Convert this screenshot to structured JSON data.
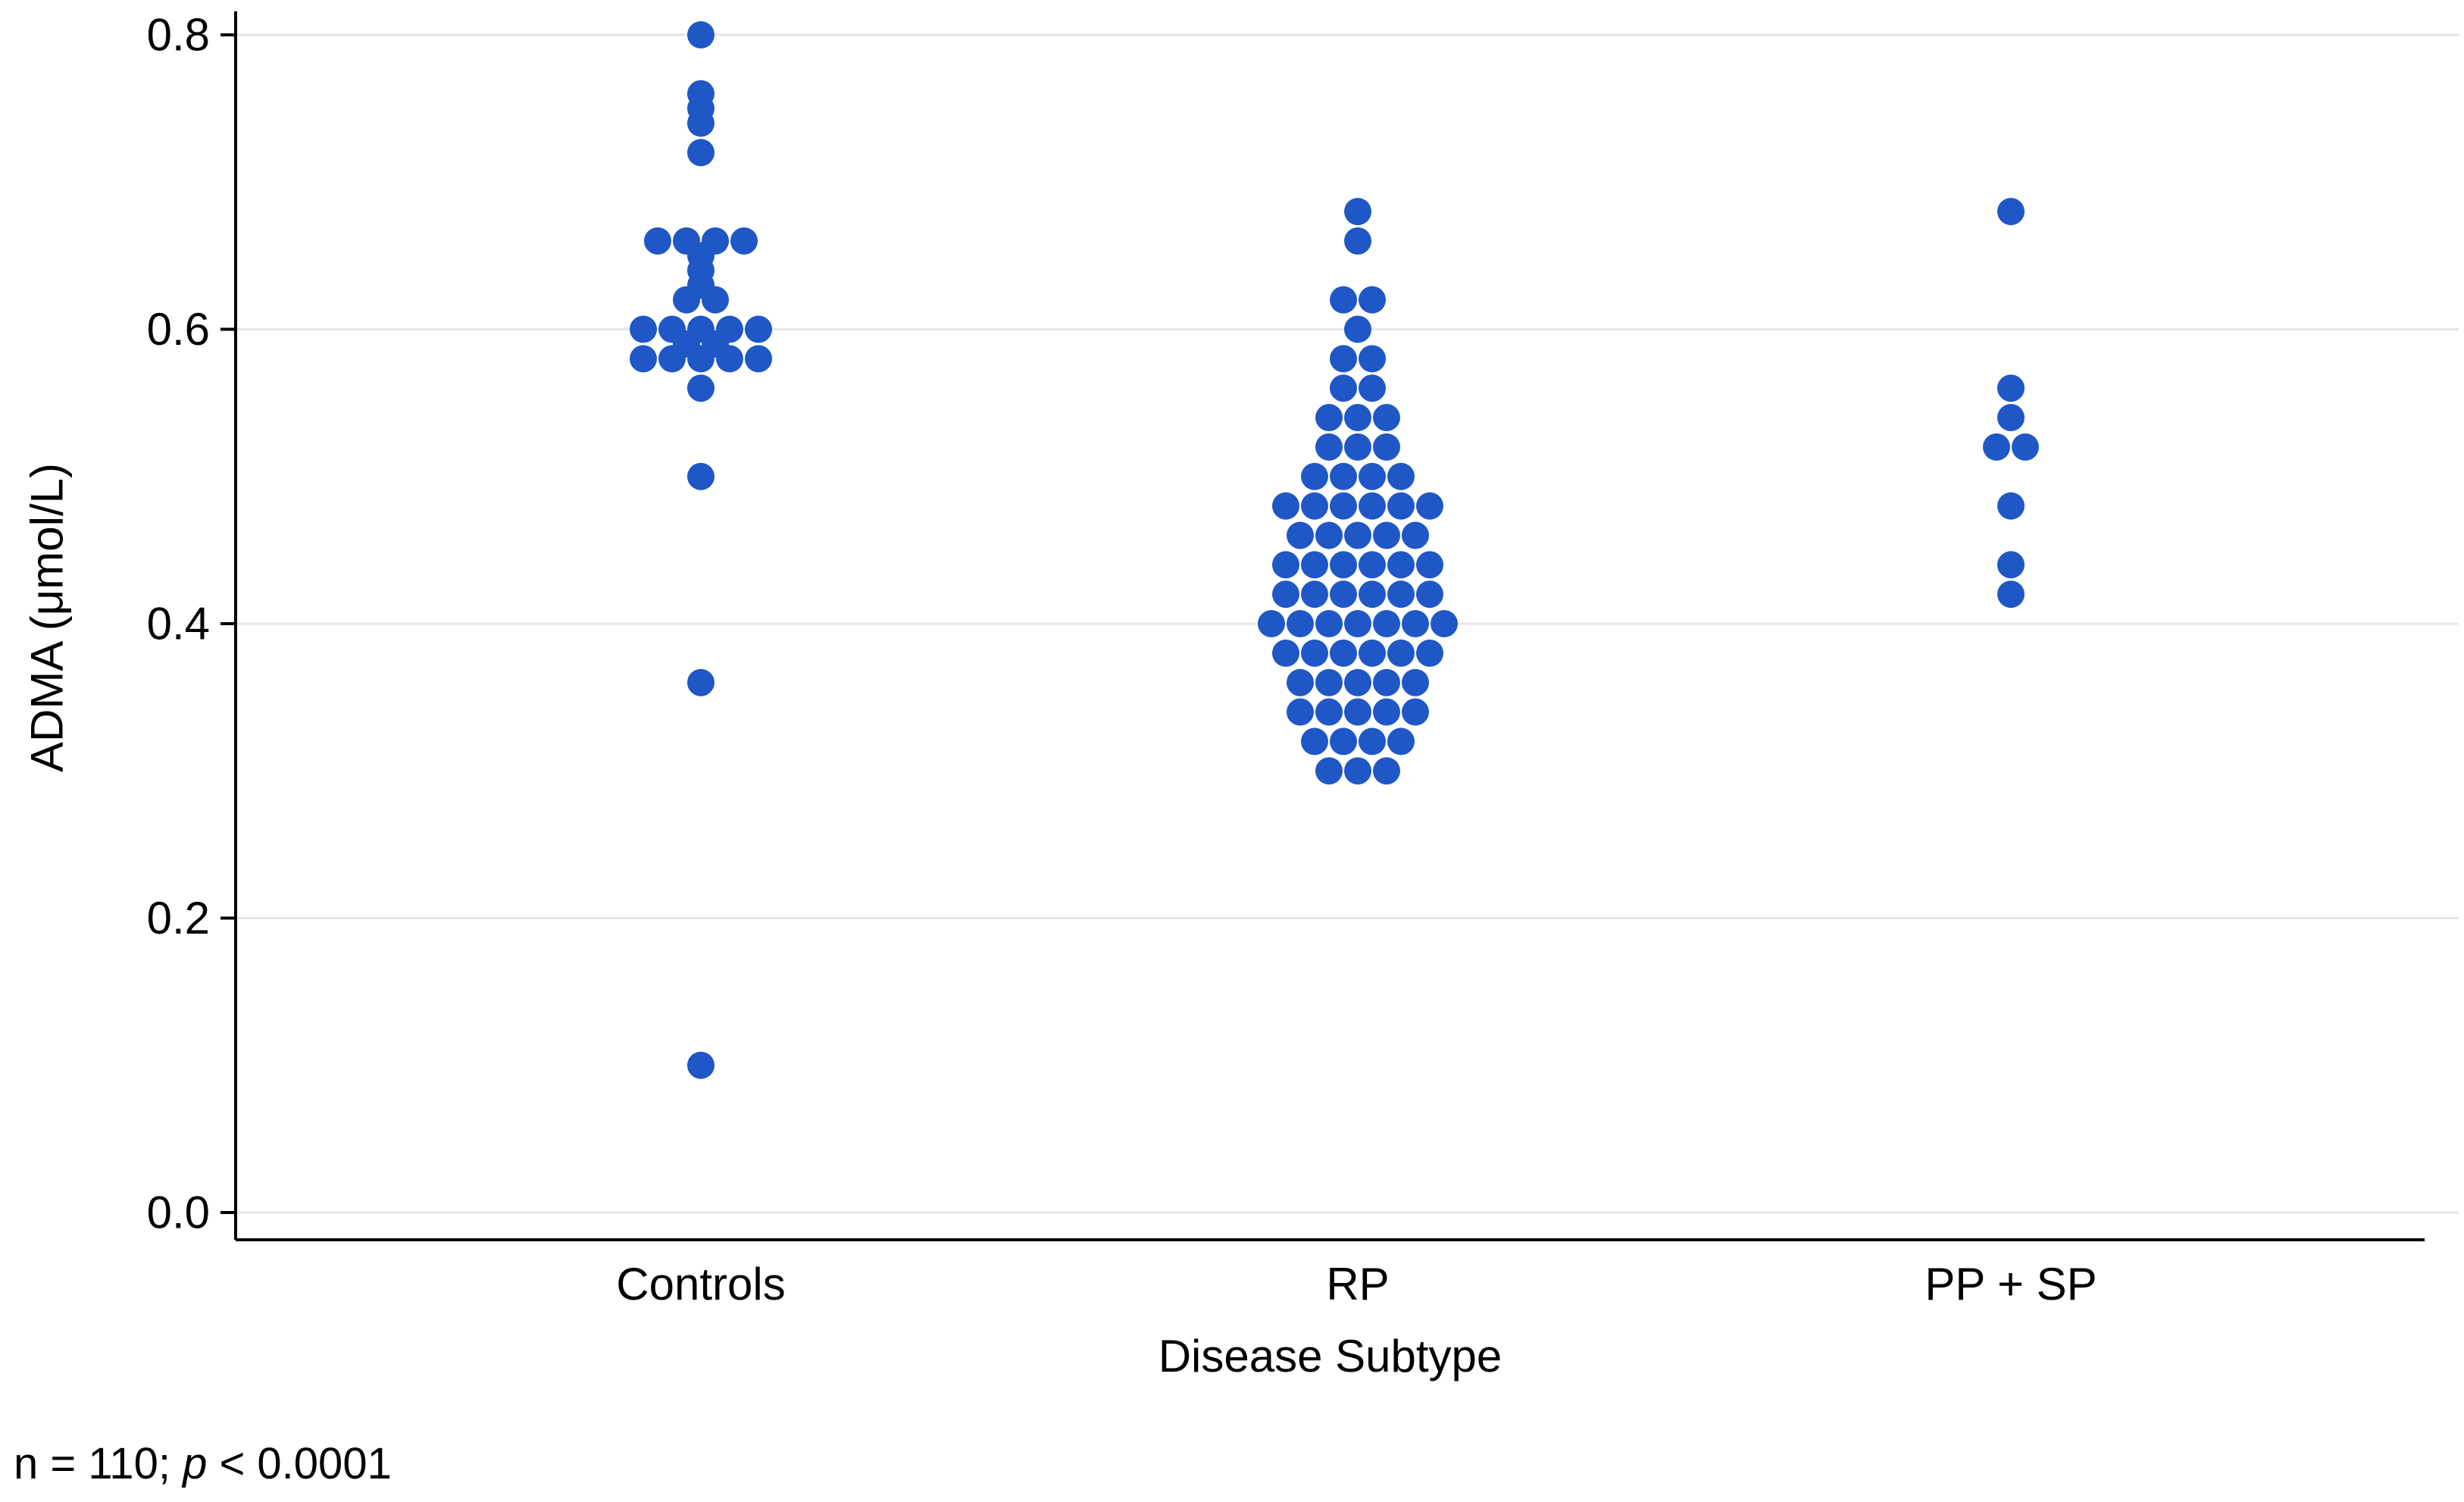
{
  "chart_data": {
    "type": "scatter",
    "variant": "dot-swarm",
    "title": "",
    "xlabel": "Disease Subtype",
    "ylabel": "ADMA (μmol/L)",
    "ylim": [
      0.0,
      0.8
    ],
    "yticks": [
      0.0,
      0.2,
      0.4,
      0.6,
      0.8
    ],
    "ytick_labels": [
      "0.0",
      "0.2",
      "0.4",
      "0.6",
      "0.8"
    ],
    "categories": [
      "Controls",
      "RP",
      "PP + SP"
    ],
    "series": [
      {
        "name": "Controls",
        "values": [
          0.8,
          0.76,
          0.75,
          0.74,
          0.72,
          0.66,
          0.66,
          0.66,
          0.66,
          0.65,
          0.64,
          0.63,
          0.62,
          0.62,
          0.6,
          0.6,
          0.6,
          0.6,
          0.6,
          0.59,
          0.59,
          0.58,
          0.58,
          0.58,
          0.58,
          0.58,
          0.56,
          0.5,
          0.36,
          0.1
        ]
      },
      {
        "name": "RP",
        "values": [
          0.68,
          0.66,
          0.62,
          0.62,
          0.6,
          0.58,
          0.58,
          0.56,
          0.56,
          0.54,
          0.54,
          0.54,
          0.52,
          0.52,
          0.52,
          0.5,
          0.5,
          0.5,
          0.5,
          0.48,
          0.48,
          0.48,
          0.48,
          0.48,
          0.48,
          0.46,
          0.46,
          0.46,
          0.46,
          0.46,
          0.44,
          0.44,
          0.44,
          0.44,
          0.44,
          0.44,
          0.42,
          0.42,
          0.42,
          0.42,
          0.42,
          0.42,
          0.4,
          0.4,
          0.4,
          0.4,
          0.4,
          0.4,
          0.4,
          0.38,
          0.38,
          0.38,
          0.38,
          0.38,
          0.38,
          0.36,
          0.36,
          0.36,
          0.36,
          0.36,
          0.34,
          0.34,
          0.34,
          0.34,
          0.34,
          0.32,
          0.32,
          0.32,
          0.32,
          0.3,
          0.3,
          0.3
        ]
      },
      {
        "name": "PP + SP",
        "values": [
          0.68,
          0.56,
          0.54,
          0.52,
          0.52,
          0.48,
          0.44,
          0.42
        ]
      }
    ],
    "dot_color": "#1f57c6",
    "grid": true,
    "gridline_color": "#e7e7e7",
    "axis_color": "#000000",
    "legend": false,
    "n_total": 110
  },
  "footer": {
    "prefix": "n = 110; ",
    "p": "p",
    "rest": " < 0.0001"
  }
}
